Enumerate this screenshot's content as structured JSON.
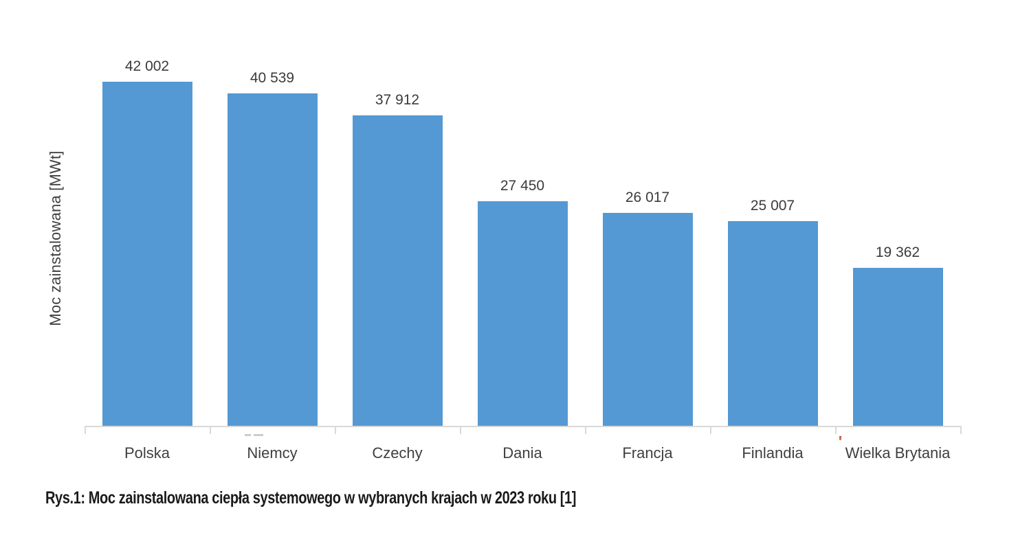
{
  "chart_data": {
    "type": "bar",
    "title": "",
    "xlabel": "",
    "ylabel": "Moc zainstalowana [MWt]",
    "categories": [
      "Polska",
      "Niemcy",
      "Czechy",
      "Dania",
      "Francja",
      "Finlandia",
      "Wielka Brytania"
    ],
    "values": [
      42002,
      40539,
      37912,
      27450,
      26017,
      25007,
      19362
    ],
    "value_labels": [
      "42 002",
      "40 539",
      "37 912",
      "27 450",
      "26 017",
      "25 007",
      "19 362"
    ],
    "ylim": [
      0,
      45000
    ],
    "grid": false,
    "legend": "none",
    "bar_color": "#5499d3",
    "axis_line_color": "#d9d9d9",
    "text_color": "#3f3f3f"
  },
  "caption": {
    "text": "Rys.1: Moc zainstalowana ciepła systemowego w wybranych krajach w 2023 roku [1]"
  }
}
